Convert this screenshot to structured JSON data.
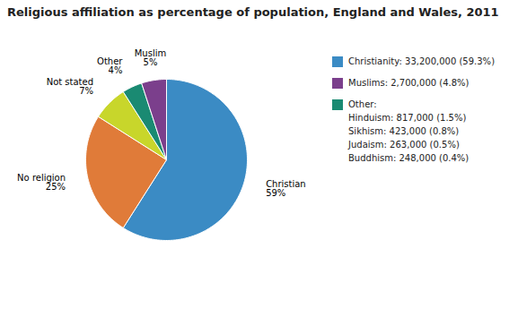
{
  "chart_data": {
    "type": "pie",
    "title": "Religious affiliation as percentage of population, England and Wales, 2011",
    "categories": [
      "Christian",
      "No religion",
      "Not stated",
      "Other",
      "Muslim"
    ],
    "values": [
      59,
      25,
      7,
      4,
      5
    ],
    "value_labels": [
      "59%",
      "25%",
      "7%",
      "4%",
      "5%"
    ],
    "colors": [
      "#3B8BC4",
      "#E07B39",
      "#C8D62B",
      "#1A8A72",
      "#7B3F8C"
    ],
    "data_labels": true,
    "legend": "right",
    "legend_items": [
      {
        "color": "#3B8BC4",
        "label": "Christianity: 33,200,000 (59.3%)",
        "sub_labels": []
      },
      {
        "color": "#7B3F8C",
        "label": "Muslims: 2,700,000 (4.8%)",
        "sub_labels": []
      },
      {
        "color": "#1A8A72",
        "label": "Other:",
        "sub_labels": [
          "Hinduism: 817,000 (1.5%)",
          "Sikhism: 423,000 (0.8%)",
          "Judaism: 263,000 (0.5%)",
          "Buddhism: 248,000 (0.4%)"
        ]
      }
    ]
  }
}
